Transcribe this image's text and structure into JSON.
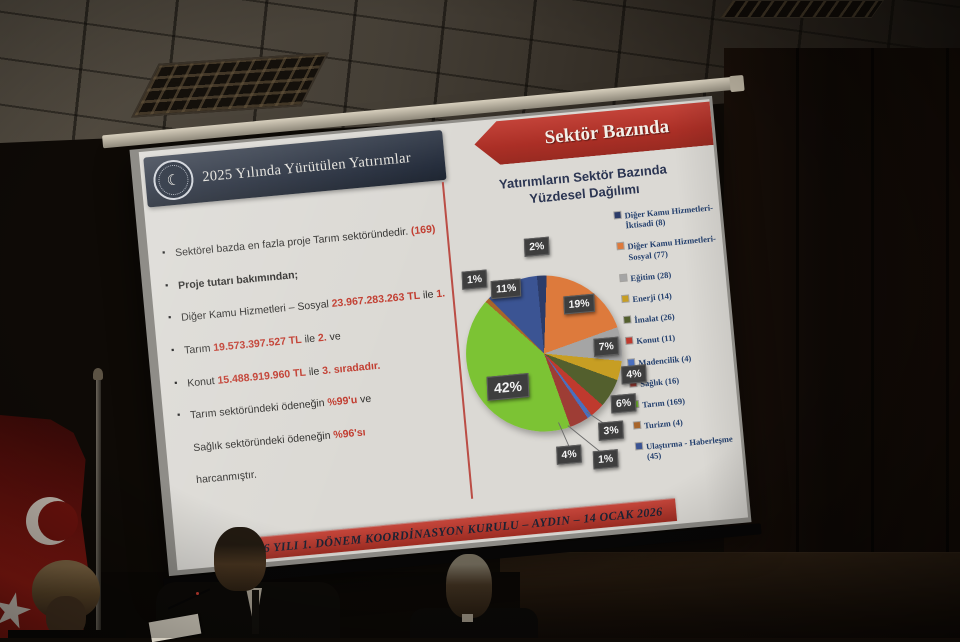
{
  "slide": {
    "header_title": "2025 Yılında Yürütülen Yatırımlar",
    "ribbon_label": "Sektör Bazında",
    "chart_title_line1": "Yatırımların Sektör Bazında",
    "chart_title_line2": "Yüzdesel Dağılımı",
    "footer_text": "2026 YILI 1. DÖNEM KOORDİNASYON KURULU – AYDIN – 14 OCAK 2026",
    "bullets": [
      {
        "lines": [
          [
            {
              "t": "Sektörel bazda en fazla proje Tarım sektöründedir. "
            },
            {
              "t": "(169)",
              "red": true,
              "bold": true
            }
          ]
        ]
      },
      {
        "lines": [
          [
            {
              "t": "Proje tutarı bakımından;",
              "bold": true
            }
          ]
        ]
      },
      {
        "lines": [
          [
            {
              "t": "Diğer Kamu Hizmetleri – Sosyal "
            },
            {
              "t": "23.967.283.263 TL",
              "red": true,
              "bold": true
            },
            {
              "t": " ile "
            },
            {
              "t": "1.",
              "red": true,
              "bold": true
            }
          ]
        ]
      },
      {
        "lines": [
          [
            {
              "t": "Tarım "
            },
            {
              "t": "19.573.397.527 TL",
              "red": true,
              "bold": true
            },
            {
              "t": " ile "
            },
            {
              "t": "2.",
              "red": true,
              "bold": true
            },
            {
              "t": " ve"
            }
          ]
        ]
      },
      {
        "lines": [
          [
            {
              "t": "Konut "
            },
            {
              "t": "15.488.919.960 TL",
              "red": true,
              "bold": true
            },
            {
              "t": " ile "
            },
            {
              "t": "3. sıradadır.",
              "red": true,
              "bold": true
            }
          ]
        ]
      },
      {
        "lines": [
          [
            {
              "t": "Tarım sektöründeki ödeneğin "
            },
            {
              "t": "%99'u",
              "red": true,
              "bold": true
            },
            {
              "t": " ve"
            }
          ],
          [
            {
              "t": "Sağlık sektöründeki ödeneğin "
            },
            {
              "t": "%96'sı",
              "red": true,
              "bold": true
            }
          ],
          [
            {
              "t": "harcanmıştır."
            }
          ]
        ]
      }
    ]
  },
  "chart_data": {
    "type": "pie",
    "title": "Yatırımların Sektör Bazında Yüzdesel Dağılımı",
    "legend_position": "right",
    "categories": [
      "Diğer Kamu Hizmetleri-İktisadi",
      "Diğer Kamu Hizmetleri-Sosyal",
      "Eğitim",
      "Enerji",
      "İmalat",
      "Konut",
      "Madencilik",
      "Sağlık",
      "Tarım",
      "Turizm",
      "Ulaştırma - Haberleşme"
    ],
    "counts": [
      8,
      77,
      28,
      14,
      26,
      11,
      4,
      16,
      169,
      4,
      45
    ],
    "percents": [
      2,
      19,
      7,
      4,
      6,
      3,
      1,
      4,
      42,
      1,
      11
    ],
    "colors": [
      "#2c3c69",
      "#dd7a3c",
      "#a5a5a5",
      "#c79e23",
      "#535f2d",
      "#bf3a2e",
      "#4a6fbe",
      "#9e3d35",
      "#7cc334",
      "#a8652a",
      "#3b5493"
    ],
    "legend_labels": [
      "Diğer Kamu Hizmetleri-İktisadi (8)",
      "Diğer Kamu Hizmetleri-Sosyal (77)",
      "Eğitim (28)",
      "Enerji (14)",
      "İmalat (26)",
      "Konut (11)",
      "Madencilik (4)",
      "Sağlık (16)",
      "Tarım (169)",
      "Turizm (4)",
      "Ulaştırma - Haberleşme (45)"
    ]
  },
  "colors": {
    "slide_accent_red": "#b5342c",
    "header_navy": "#2a3240",
    "highlight_red": "#c13b2e",
    "slide_background": "#dbd9d4"
  },
  "logo": {
    "crescent_glyph": "☾",
    "star_glyph": "★"
  }
}
